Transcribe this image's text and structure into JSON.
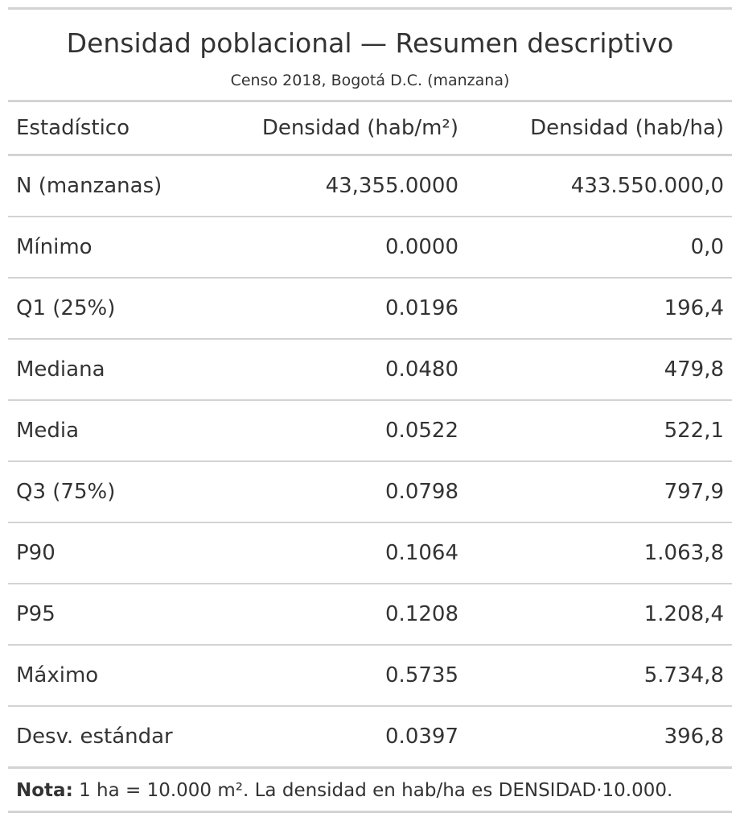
{
  "title": "Densidad poblacional — Resumen descriptivo",
  "subtitle": "Censo 2018, Bogotá D.C. (manzana)",
  "columns": [
    "Estadístico",
    "Densidad (hab/m²)",
    "Densidad (hab/ha)"
  ],
  "rows": [
    {
      "stat": "N (manzanas)",
      "m2": "43,355.0000",
      "ha": "433.550.000,0"
    },
    {
      "stat": "Mínimo",
      "m2": "0.0000",
      "ha": "0,0"
    },
    {
      "stat": "Q1 (25%)",
      "m2": "0.0196",
      "ha": "196,4"
    },
    {
      "stat": "Mediana",
      "m2": "0.0480",
      "ha": "479,8"
    },
    {
      "stat": "Media",
      "m2": "0.0522",
      "ha": "522,1"
    },
    {
      "stat": "Q3 (75%)",
      "m2": "0.0798",
      "ha": "797,9"
    },
    {
      "stat": "P90",
      "m2": "0.1064",
      "ha": "1.063,8"
    },
    {
      "stat": "P95",
      "m2": "0.1208",
      "ha": "1.208,4"
    },
    {
      "stat": "Máximo",
      "m2": "0.5735",
      "ha": "5.734,8"
    },
    {
      "stat": "Desv. estándar",
      "m2": "0.0397",
      "ha": "396,8"
    }
  ],
  "note": {
    "label": "Nota:",
    "text": " 1 ha = 10.000 m². La densidad en hab/ha es DENSIDAD·10.000."
  }
}
